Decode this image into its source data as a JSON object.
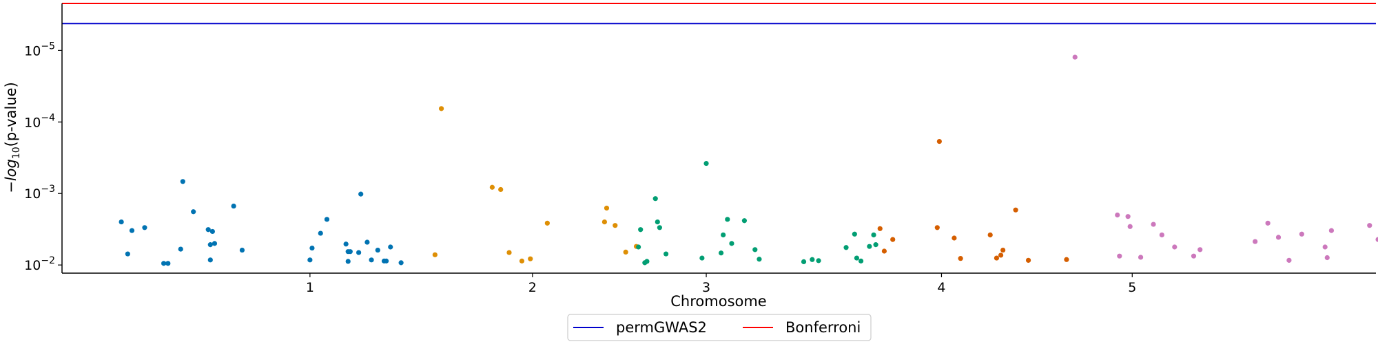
{
  "chart_data": {
    "type": "scatter",
    "xlabel": "Chromosome",
    "ylabel": "-log10(p-value)",
    "ylabel_parts": {
      "prefix": "−",
      "italic": "log",
      "sub": "10",
      "suffix": "(p-value)"
    },
    "y_scale": "log",
    "y_inverted": true,
    "ylim": [
      0.013,
      2.2e-06
    ],
    "xlim": [
      0,
      6.2
    ],
    "x_ticks": [
      {
        "value": 1.17,
        "label": "1"
      },
      {
        "value": 2.22,
        "label": "2"
      },
      {
        "value": 3.04,
        "label": "3"
      },
      {
        "value": 4.15,
        "label": "4"
      },
      {
        "value": 5.05,
        "label": "5"
      }
    ],
    "y_ticks": [
      {
        "value": 0.01,
        "base": "10",
        "exp": "−2"
      },
      {
        "value": 0.001,
        "base": "10",
        "exp": "−3"
      },
      {
        "value": 0.0001,
        "base": "10",
        "exp": "−4"
      },
      {
        "value": 1e-05,
        "base": "10",
        "exp": "−5"
      }
    ],
    "grid": false,
    "legend_position": "bottom-center",
    "thresholds": [
      {
        "name": "permGWAS2",
        "value": 4.2e-06,
        "color": "#0000cc"
      },
      {
        "name": "Bonferroni",
        "value": 2.2e-06,
        "color": "#ff0000"
      }
    ],
    "series": [
      {
        "color": "#0173b2",
        "points": [
          [
            0.28,
            0.0025
          ],
          [
            0.31,
            0.007
          ],
          [
            0.33,
            0.0033
          ],
          [
            0.39,
            0.003
          ],
          [
            0.48,
            0.0095
          ],
          [
            0.5,
            0.0095
          ],
          [
            0.56,
            0.006
          ],
          [
            0.57,
            0.00068
          ],
          [
            0.62,
            0.0018
          ],
          [
            0.69,
            0.0032
          ],
          [
            0.7,
            0.0052
          ],
          [
            0.7,
            0.0085
          ],
          [
            0.71,
            0.0034
          ],
          [
            0.72,
            0.005
          ],
          [
            0.81,
            0.0015
          ],
          [
            0.85,
            0.0062
          ],
          [
            1.17,
            0.0085
          ],
          [
            1.18,
            0.0058
          ],
          [
            1.22,
            0.0036
          ],
          [
            1.25,
            0.0023
          ],
          [
            1.34,
            0.0051
          ],
          [
            1.35,
            0.0065
          ],
          [
            1.35,
            0.0089
          ],
          [
            1.36,
            0.0065
          ],
          [
            1.4,
            0.0067
          ],
          [
            1.41,
            0.00102
          ],
          [
            1.44,
            0.0048
          ],
          [
            1.46,
            0.0085
          ],
          [
            1.49,
            0.0062
          ],
          [
            1.52,
            0.0088
          ],
          [
            1.53,
            0.0088
          ],
          [
            1.55,
            0.0056
          ],
          [
            1.6,
            0.0093
          ]
        ]
      },
      {
        "color": "#de8f05",
        "points": [
          [
            1.76,
            0.0072
          ],
          [
            1.79,
            6.5e-05
          ],
          [
            2.03,
            0.00082
          ],
          [
            2.07,
            0.00088
          ],
          [
            2.11,
            0.0067
          ],
          [
            2.17,
            0.0088
          ],
          [
            2.21,
            0.0082
          ],
          [
            2.29,
            0.0026
          ],
          [
            2.56,
            0.0025
          ],
          [
            2.57,
            0.0016
          ],
          [
            2.61,
            0.0028
          ],
          [
            2.66,
            0.0066
          ],
          [
            2.71,
            0.0055
          ]
        ]
      },
      {
        "color": "#029e73",
        "points": [
          [
            2.72,
            0.0056
          ],
          [
            2.73,
            0.0032
          ],
          [
            2.75,
            0.0093
          ],
          [
            2.76,
            0.0089
          ],
          [
            2.8,
            0.00118
          ],
          [
            2.81,
            0.0025
          ],
          [
            2.82,
            0.003
          ],
          [
            2.85,
            0.007
          ],
          [
            3.02,
            0.008
          ],
          [
            3.04,
            0.00038
          ],
          [
            3.11,
            0.0068
          ],
          [
            3.12,
            0.0038
          ],
          [
            3.14,
            0.0023
          ],
          [
            3.16,
            0.005
          ],
          [
            3.22,
            0.0024
          ],
          [
            3.27,
            0.0061
          ],
          [
            3.29,
            0.0083
          ],
          [
            3.5,
            0.009
          ],
          [
            3.54,
            0.0084
          ],
          [
            3.57,
            0.0087
          ],
          [
            3.7,
            0.0057
          ],
          [
            3.74,
            0.0037
          ],
          [
            3.75,
            0.008
          ],
          [
            3.77,
            0.0088
          ],
          [
            3.81,
            0.0055
          ],
          [
            3.83,
            0.0038
          ],
          [
            3.84,
            0.0052
          ]
        ]
      },
      {
        "color": "#d55e00",
        "points": [
          [
            3.86,
            0.0031
          ],
          [
            3.88,
            0.0064
          ],
          [
            3.92,
            0.0044
          ],
          [
            4.13,
            0.003
          ],
          [
            4.14,
            0.000187
          ],
          [
            4.21,
            0.0042
          ],
          [
            4.24,
            0.0081
          ],
          [
            4.38,
            0.0038
          ],
          [
            4.41,
            0.008
          ],
          [
            4.43,
            0.0073
          ],
          [
            4.44,
            0.0062
          ],
          [
            4.5,
            0.0017
          ],
          [
            4.56,
            0.0086
          ],
          [
            4.74,
            0.0084
          ]
        ]
      },
      {
        "color": "#cc78bc",
        "points": [
          [
            4.78,
            1.24e-05
          ],
          [
            4.98,
            0.002
          ],
          [
            4.99,
            0.0075
          ],
          [
            5.03,
            0.0021
          ],
          [
            5.04,
            0.0029
          ],
          [
            5.09,
            0.0078
          ],
          [
            5.15,
            0.0027
          ],
          [
            5.19,
            0.0038
          ],
          [
            5.25,
            0.0056
          ],
          [
            5.34,
            0.0075
          ],
          [
            5.37,
            0.0061
          ],
          [
            5.63,
            0.0047
          ],
          [
            5.69,
            0.0026
          ],
          [
            5.74,
            0.0041
          ],
          [
            5.79,
            0.0086
          ],
          [
            5.85,
            0.0037
          ],
          [
            5.96,
            0.0056
          ],
          [
            5.97,
            0.0079
          ],
          [
            5.99,
            0.0033
          ],
          [
            6.17,
            0.0028
          ],
          [
            6.21,
            0.0044
          ]
        ]
      }
    ]
  }
}
